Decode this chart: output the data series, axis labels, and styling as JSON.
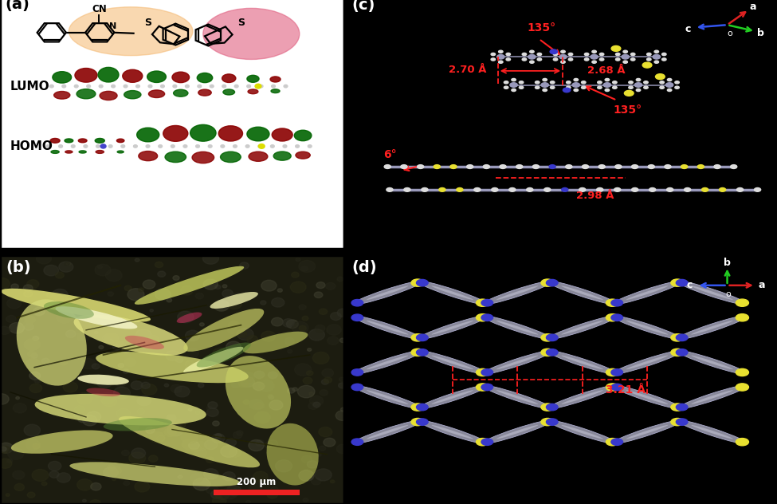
{
  "label_a": "(a)",
  "label_b": "(b)",
  "label_c": "(c)",
  "label_d": "(d)",
  "lumo_text": "LUMO",
  "homo_text": "HOMO",
  "red": "#ff2020",
  "green_arrow": "#00cc00",
  "blue_arrow": "#2244dd",
  "white": "#ffffff",
  "black": "#000000",
  "yellow_s": "#e8e800",
  "blue_n": "#3333bb",
  "mol_gray": "#aaaabb",
  "scale_bar_color": "#ee2222",
  "scale_bar_text": "200 μm",
  "annotation_c": {
    "angle1": "135°",
    "angle2": "135°",
    "angle3": "6°",
    "dist1": "2.70 Å",
    "dist2": "2.68 Å",
    "dist3": "2.98 Å"
  },
  "annotation_d": {
    "dist": "3.21 Å"
  }
}
